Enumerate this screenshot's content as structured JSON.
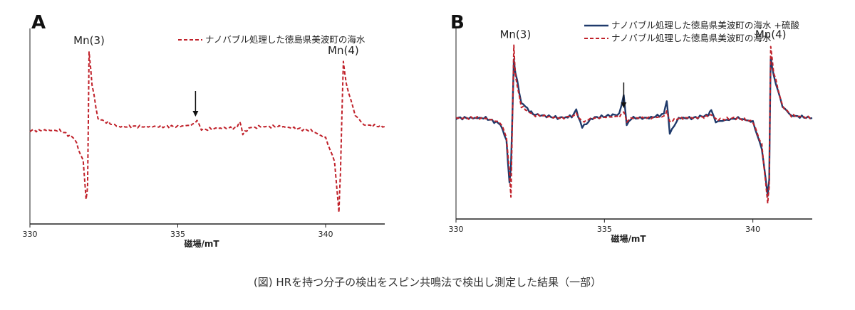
{
  "caption": "(図) HRを持つ分子の検出をスピン共鳴法で検出し測定した結果（一部）",
  "colors": {
    "red": "#c0212a",
    "navy": "#1f3a6b",
    "axis": "#222222"
  },
  "chart_data": [
    {
      "panel": "A",
      "type": "line",
      "xlabel": "磁場/mT",
      "ylabel": "",
      "xlim": [
        330,
        342
      ],
      "xticks": [
        330,
        335,
        340
      ],
      "ylim": [
        -1.15,
        1.05
      ],
      "legend": "top-right",
      "series": [
        {
          "name": "ナノバブル処理した徳島県美波町の海水",
          "color": "#c0212a",
          "style": "dashed",
          "x": [
            330,
            331,
            331.5,
            331.8,
            331.9,
            331.95,
            332.0,
            332.1,
            332.3,
            333,
            334,
            335,
            335.5,
            335.65,
            335.8,
            336.5,
            337.0,
            337.1,
            337.2,
            337.4,
            337.8,
            338.5,
            339.5,
            340.0,
            340.3,
            340.45,
            340.5,
            340.6,
            340.7,
            341.0,
            341.3,
            342
          ],
          "y": [
            -0.05,
            -0.05,
            -0.15,
            -0.45,
            -0.95,
            -0.8,
            0.98,
            0.55,
            0.1,
            0.0,
            0.0,
            0.0,
            0.02,
            0.08,
            -0.04,
            -0.02,
            -0.02,
            0.06,
            -0.1,
            -0.02,
            0.0,
            0.0,
            -0.05,
            -0.15,
            -0.45,
            -1.12,
            -0.6,
            0.85,
            0.55,
            0.15,
            0.02,
            0.0
          ]
        }
      ],
      "annotations": [
        {
          "text": "Mn(3)",
          "x": 332.0
        },
        {
          "text": "Mn(4)",
          "x": 340.6
        }
      ],
      "arrow_x": 335.6
    },
    {
      "panel": "B",
      "type": "line",
      "xlabel": "磁場/mT",
      "ylabel": "",
      "xlim": [
        330,
        342
      ],
      "xticks": [
        330,
        335,
        340
      ],
      "ylim": [
        -1.15,
        1.1
      ],
      "legend": "top-right",
      "series": [
        {
          "name": "ナノバブル処理した徳島県美波町の海水 +硫酸",
          "color": "#1f3a6b",
          "style": "solid",
          "x": [
            330,
            331,
            331.5,
            331.7,
            331.8,
            331.85,
            331.95,
            332.0,
            332.2,
            332.6,
            333.5,
            333.9,
            334.05,
            334.25,
            334.6,
            335.5,
            335.65,
            335.75,
            335.9,
            336.5,
            337.0,
            337.1,
            337.2,
            337.5,
            338.0,
            338.5,
            338.6,
            338.75,
            339.5,
            340.0,
            340.3,
            340.5,
            340.55,
            340.6,
            340.7,
            341.0,
            341.3,
            342
          ],
          "y": [
            0.0,
            0.0,
            -0.08,
            -0.3,
            -0.85,
            -0.65,
            0.75,
            0.6,
            0.2,
            0.05,
            0.0,
            0.02,
            0.1,
            -0.12,
            0.0,
            0.05,
            0.3,
            -0.1,
            0.0,
            0.0,
            0.05,
            0.22,
            -0.2,
            0.0,
            0.0,
            0.04,
            0.1,
            -0.05,
            0.0,
            -0.05,
            -0.4,
            -1.0,
            -0.8,
            0.8,
            0.55,
            0.15,
            0.03,
            0.0
          ]
        },
        {
          "name": "ナノバブル処理した徳島県美波町の海水",
          "color": "#c0212a",
          "style": "dashed",
          "x": [
            330,
            331,
            331.5,
            331.7,
            331.8,
            331.85,
            331.95,
            332.0,
            332.2,
            332.6,
            333.5,
            333.9,
            334.05,
            334.25,
            334.6,
            335.5,
            335.65,
            335.75,
            335.9,
            336.5,
            337.0,
            337.1,
            337.2,
            337.5,
            338.0,
            338.5,
            338.6,
            338.75,
            339.5,
            340.0,
            340.3,
            340.5,
            340.55,
            340.6,
            340.7,
            341.0,
            341.3,
            342
          ],
          "y": [
            0.0,
            0.0,
            -0.06,
            -0.25,
            -0.7,
            -1.02,
            0.95,
            0.55,
            0.15,
            0.04,
            0.0,
            0.02,
            0.06,
            -0.05,
            0.0,
            0.02,
            0.08,
            -0.05,
            0.0,
            0.0,
            0.02,
            0.08,
            -0.05,
            0.0,
            0.0,
            0.02,
            0.05,
            -0.02,
            0.0,
            -0.05,
            -0.35,
            -1.1,
            -0.9,
            0.95,
            0.6,
            0.15,
            0.03,
            0.0
          ]
        }
      ],
      "annotations": [
        {
          "text": "Mn(3)",
          "x": 332.0
        },
        {
          "text": "Mn(4)",
          "x": 340.6
        }
      ],
      "arrow_x": 335.65
    }
  ]
}
